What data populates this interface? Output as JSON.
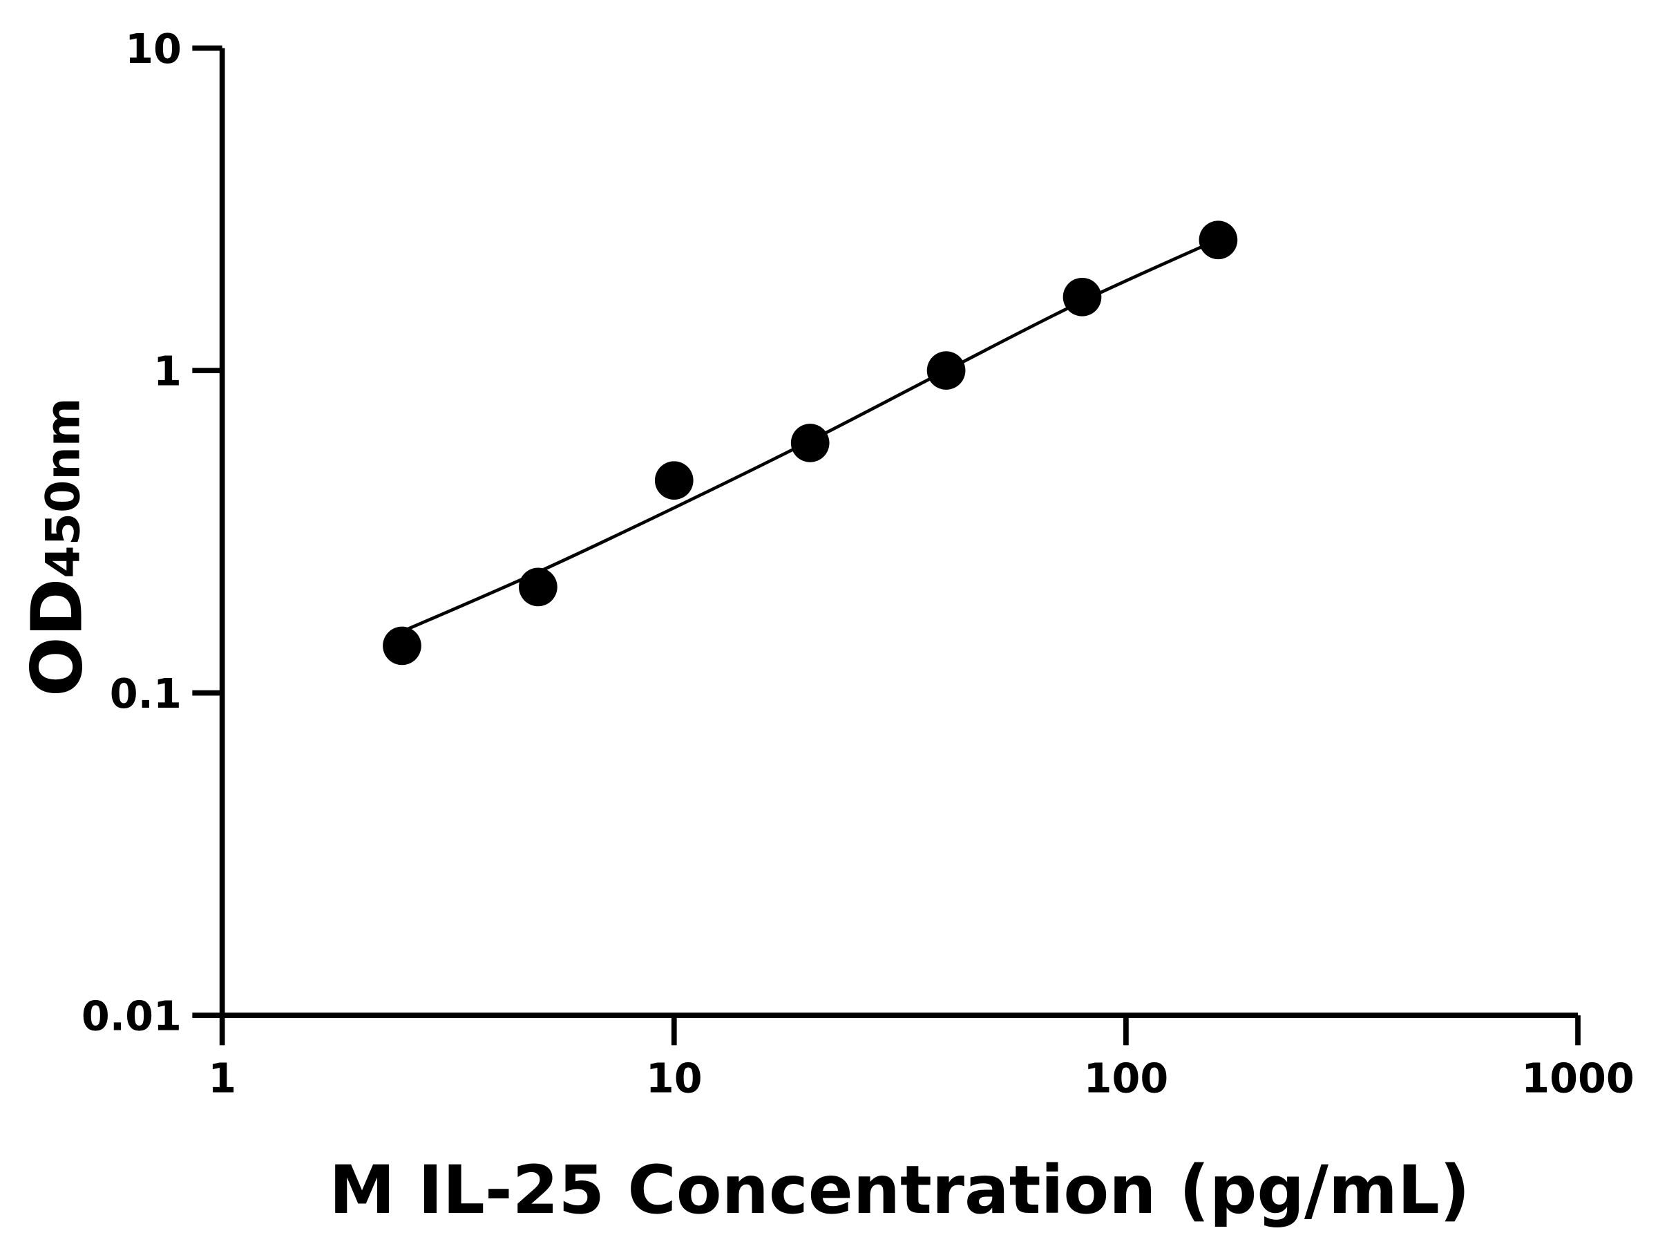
{
  "chart_data": {
    "type": "scatter",
    "title": "",
    "xlabel": "M IL-25 Concentration (pg/mL)",
    "ylabel_main": "OD",
    "ylabel_sub": "450nm",
    "x_scale": "log",
    "y_scale": "log",
    "xlim": [
      1,
      1000
    ],
    "ylim": [
      0.01,
      10
    ],
    "x_ticks": [
      1,
      10,
      100,
      1000
    ],
    "x_tick_labels": [
      "1",
      "10",
      "100",
      "1000"
    ],
    "y_ticks": [
      0.01,
      0.1,
      1,
      10
    ],
    "y_tick_labels": [
      "0.01",
      "0.1",
      "1",
      "10"
    ],
    "grid": false,
    "color": "#000000",
    "points": [
      {
        "x": 2.5,
        "y": 0.14
      },
      {
        "x": 5,
        "y": 0.213
      },
      {
        "x": 10,
        "y": 0.456
      },
      {
        "x": 20,
        "y": 0.596
      },
      {
        "x": 40,
        "y": 1.0
      },
      {
        "x": 80,
        "y": 1.69
      },
      {
        "x": 160,
        "y": 2.54
      }
    ],
    "fit_curve": [
      {
        "x": 2.5,
        "y": 0.155
      },
      {
        "x": 5,
        "y": 0.237
      },
      {
        "x": 10,
        "y": 0.375
      },
      {
        "x": 20,
        "y": 0.605
      },
      {
        "x": 40,
        "y": 1.0
      },
      {
        "x": 80,
        "y": 1.64
      },
      {
        "x": 160,
        "y": 2.55
      }
    ]
  }
}
